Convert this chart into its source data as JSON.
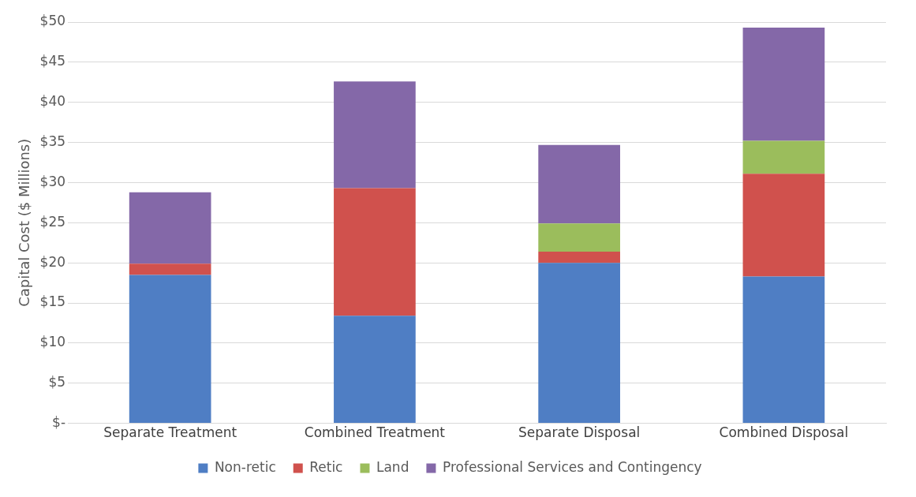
{
  "chart_data": {
    "type": "bar",
    "stacked": true,
    "ylabel": "Capital Cost ($ Millions)",
    "categories": [
      "Separate Treatment",
      "Combined Treatment",
      "Separate Disposal",
      "Combined Disposal"
    ],
    "series": [
      {
        "name": "Non-retic",
        "color": "#4f7ec4",
        "values": [
          18.5,
          13.4,
          20.0,
          18.3
        ]
      },
      {
        "name": "Retic",
        "color": "#d0514d",
        "values": [
          1.4,
          15.9,
          1.4,
          12.8
        ]
      },
      {
        "name": "Land",
        "color": "#9bbd5c",
        "values": [
          0,
          0,
          3.5,
          4.1
        ]
      },
      {
        "name": "Professional Services and Contingency",
        "color": "#8468a8",
        "values": [
          8.9,
          13.3,
          9.8,
          14.1
        ]
      }
    ],
    "ylim": [
      0,
      50
    ],
    "yticks": [
      {
        "value": 0,
        "label": "$-"
      },
      {
        "value": 5,
        "label": "$5"
      },
      {
        "value": 10,
        "label": "$10"
      },
      {
        "value": 15,
        "label": "$15"
      },
      {
        "value": 20,
        "label": "$20"
      },
      {
        "value": 25,
        "label": "$25"
      },
      {
        "value": 30,
        "label": "$30"
      },
      {
        "value": 35,
        "label": "$35"
      },
      {
        "value": 40,
        "label": "$40"
      },
      {
        "value": 45,
        "label": "$45"
      },
      {
        "value": 50,
        "label": "$50"
      }
    ],
    "grid": "y",
    "legend": "bottom"
  }
}
